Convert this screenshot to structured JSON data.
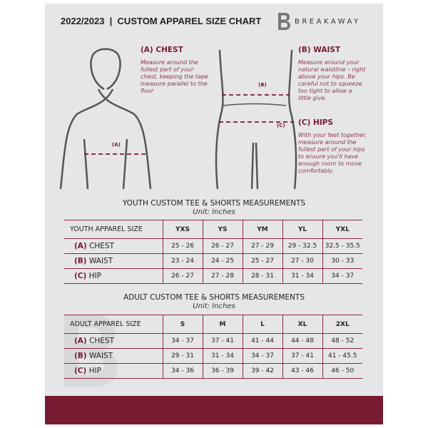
{
  "header": {
    "title": "2022/2023  |  CUSTOM APPAREL SIZE CHART",
    "brand": "BREAKAWAY"
  },
  "measures": {
    "chest": {
      "heading": "(A) CHEST",
      "marker": "(A)",
      "text": "Measure around the fullest part of your chest, keeping the tape measure parallel to the floor"
    },
    "waist": {
      "heading": "(B) WAIST",
      "marker": "(B)",
      "text": "Measure around your natural waistline – right above your hips. Be careful not to squeeze too tight to allow a little give."
    },
    "hips": {
      "heading": "(C) HIPS",
      "marker": "(C)",
      "text": "With your feet together, measure around the fullest part of your hips to ensure you'll have enough room to move comfortably."
    }
  },
  "youth": {
    "title": "YOUTH CUSTOM TEE & SHORTS MEASUREMENTS",
    "unit": "Unit: Inches",
    "label": "YOUTH APPAREL SIZE",
    "sizes": [
      "YXS",
      "YS",
      "YM",
      "YL",
      "YXL"
    ],
    "rows": [
      {
        "code": "(A)",
        "name": "CHEST",
        "values": [
          "25 - 26",
          "26 - 27",
          "27 - 29",
          "29 - 32.5",
          "32.5 - 35.5"
        ]
      },
      {
        "code": "(B)",
        "name": "WAIST",
        "values": [
          "23 - 24",
          "24 - 25",
          "25 - 27",
          "27 - 30",
          "30 - 33"
        ]
      },
      {
        "code": "(C)",
        "name": "HIP",
        "values": [
          "26 - 27",
          "27 - 28",
          "28 - 31",
          "31 - 34",
          "34 - 37"
        ]
      }
    ]
  },
  "adult": {
    "title": "ADULT CUSTOM TEE & SHORTS MEASUREMENTS",
    "unit": "Unit: Inches",
    "label": "ADULT APPAREL SIZE",
    "sizes": [
      "S",
      "M",
      "L",
      "XL",
      "2XL"
    ],
    "rows": [
      {
        "code": "(A)",
        "name": "CHEST",
        "values": [
          "34 - 37",
          "37 - 41",
          "41 - 44",
          "44 - 48",
          "48 - 52"
        ]
      },
      {
        "code": "(B)",
        "name": "WAIST",
        "values": [
          "29 - 31",
          "31 - 34",
          "34 - 37",
          "37 - 41",
          "41 - 45.5"
        ]
      },
      {
        "code": "(C)",
        "name": "HIP",
        "values": [
          "34 - 36",
          "36 - 39",
          "39 - 42",
          "43 - 46",
          "46 - 50"
        ]
      }
    ]
  },
  "colors": {
    "accent": "#7a1a30",
    "background": "#e6e6e8"
  }
}
